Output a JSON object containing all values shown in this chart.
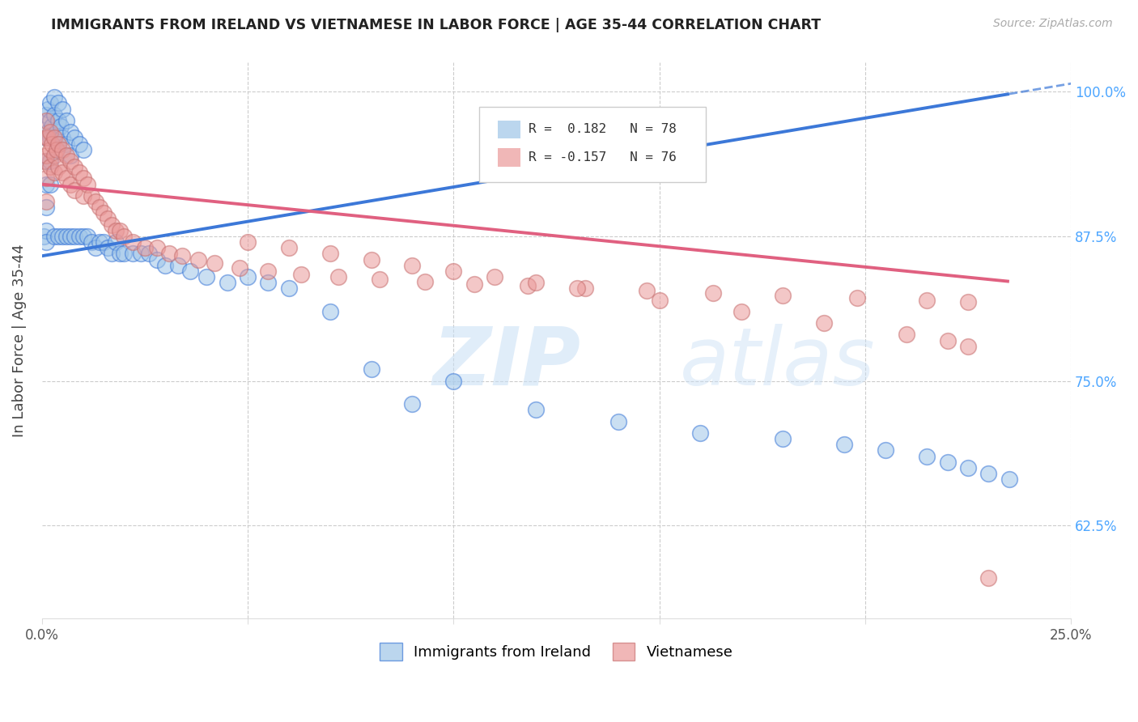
{
  "title": "IMMIGRANTS FROM IRELAND VS VIETNAMESE IN LABOR FORCE | AGE 35-44 CORRELATION CHART",
  "source": "Source: ZipAtlas.com",
  "ylabel": "In Labor Force | Age 35-44",
  "xlim": [
    0.0,
    0.25
  ],
  "ylim": [
    0.545,
    1.025
  ],
  "color_ireland": "#9fc5e8",
  "color_vietnamese": "#ea9999",
  "color_ireland_line": "#3c78d8",
  "color_vietnamese_line": "#e06080",
  "watermark_zip": "ZIP",
  "watermark_atlas": "atlas",
  "ireland_x": [
    0.0005,
    0.001,
    0.001,
    0.001,
    0.001,
    0.001,
    0.001,
    0.001,
    0.0015,
    0.0015,
    0.002,
    0.002,
    0.002,
    0.002,
    0.002,
    0.0025,
    0.003,
    0.003,
    0.003,
    0.003,
    0.0035,
    0.004,
    0.004,
    0.004,
    0.004,
    0.0045,
    0.005,
    0.005,
    0.005,
    0.006,
    0.006,
    0.006,
    0.007,
    0.007,
    0.007,
    0.008,
    0.008,
    0.009,
    0.009,
    0.01,
    0.01,
    0.011,
    0.012,
    0.013,
    0.014,
    0.015,
    0.016,
    0.017,
    0.018,
    0.019,
    0.02,
    0.022,
    0.024,
    0.026,
    0.028,
    0.03,
    0.033,
    0.036,
    0.04,
    0.045,
    0.05,
    0.055,
    0.06,
    0.07,
    0.08,
    0.09,
    0.1,
    0.12,
    0.14,
    0.16,
    0.18,
    0.195,
    0.205,
    0.215,
    0.22,
    0.225,
    0.23,
    0.235
  ],
  "ireland_y": [
    0.875,
    0.98,
    0.96,
    0.94,
    0.92,
    0.9,
    0.88,
    0.87,
    0.985,
    0.965,
    0.99,
    0.975,
    0.96,
    0.94,
    0.92,
    0.97,
    0.995,
    0.98,
    0.96,
    0.875,
    0.965,
    0.99,
    0.975,
    0.955,
    0.875,
    0.97,
    0.985,
    0.96,
    0.875,
    0.975,
    0.955,
    0.875,
    0.965,
    0.945,
    0.875,
    0.96,
    0.875,
    0.955,
    0.875,
    0.95,
    0.875,
    0.875,
    0.87,
    0.865,
    0.87,
    0.87,
    0.865,
    0.86,
    0.87,
    0.86,
    0.86,
    0.86,
    0.86,
    0.86,
    0.855,
    0.85,
    0.85,
    0.845,
    0.84,
    0.835,
    0.84,
    0.835,
    0.83,
    0.81,
    0.76,
    0.73,
    0.75,
    0.725,
    0.715,
    0.705,
    0.7,
    0.695,
    0.69,
    0.685,
    0.68,
    0.675,
    0.67,
    0.665
  ],
  "vietnam_x": [
    0.0005,
    0.001,
    0.001,
    0.001,
    0.001,
    0.001,
    0.0015,
    0.002,
    0.002,
    0.002,
    0.0025,
    0.003,
    0.003,
    0.003,
    0.0035,
    0.004,
    0.004,
    0.005,
    0.005,
    0.006,
    0.006,
    0.007,
    0.007,
    0.008,
    0.008,
    0.009,
    0.01,
    0.01,
    0.011,
    0.012,
    0.013,
    0.014,
    0.015,
    0.016,
    0.017,
    0.018,
    0.019,
    0.02,
    0.022,
    0.025,
    0.028,
    0.031,
    0.034,
    0.038,
    0.042,
    0.048,
    0.055,
    0.063,
    0.072,
    0.082,
    0.093,
    0.105,
    0.118,
    0.132,
    0.147,
    0.163,
    0.18,
    0.198,
    0.215,
    0.225,
    0.05,
    0.06,
    0.07,
    0.08,
    0.09,
    0.1,
    0.11,
    0.12,
    0.13,
    0.15,
    0.17,
    0.19,
    0.21,
    0.22,
    0.225,
    0.23
  ],
  "vietnam_y": [
    0.94,
    0.975,
    0.96,
    0.945,
    0.925,
    0.905,
    0.96,
    0.965,
    0.95,
    0.935,
    0.955,
    0.96,
    0.945,
    0.93,
    0.95,
    0.955,
    0.935,
    0.95,
    0.93,
    0.945,
    0.925,
    0.94,
    0.92,
    0.935,
    0.915,
    0.93,
    0.925,
    0.91,
    0.92,
    0.91,
    0.905,
    0.9,
    0.895,
    0.89,
    0.885,
    0.88,
    0.88,
    0.875,
    0.87,
    0.865,
    0.865,
    0.86,
    0.858,
    0.855,
    0.852,
    0.848,
    0.845,
    0.842,
    0.84,
    0.838,
    0.836,
    0.834,
    0.832,
    0.83,
    0.828,
    0.826,
    0.824,
    0.822,
    0.82,
    0.818,
    0.87,
    0.865,
    0.86,
    0.855,
    0.85,
    0.845,
    0.84,
    0.835,
    0.83,
    0.82,
    0.81,
    0.8,
    0.79,
    0.785,
    0.78,
    0.58
  ],
  "ireland_line_x0": 0.0,
  "ireland_line_y0": 0.858,
  "ireland_line_x1": 0.235,
  "ireland_line_y1": 0.998,
  "vietnam_line_x0": 0.0,
  "vietnam_line_y0": 0.92,
  "vietnam_line_x1": 0.235,
  "vietnam_line_y1": 0.836
}
